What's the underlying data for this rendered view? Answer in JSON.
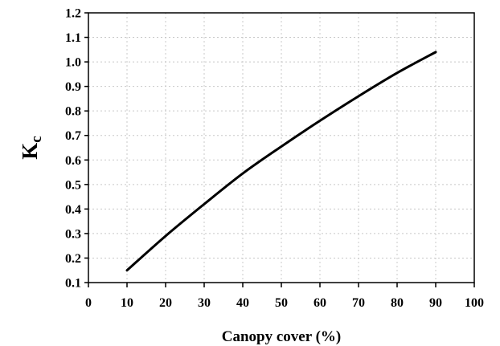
{
  "chart_data": {
    "type": "line",
    "xlabel": "Canopy cover (%)",
    "ylabel": {
      "main": "K",
      "subscript": "c"
    },
    "xlim": [
      0,
      100
    ],
    "ylim": [
      0.1,
      1.2
    ],
    "grid": true,
    "x_ticks": [
      "0",
      "10",
      "20",
      "30",
      "40",
      "50",
      "60",
      "70",
      "80",
      "90",
      "100"
    ],
    "y_ticks": [
      "0.1",
      "0.2",
      "0.3",
      "0.4",
      "0.5",
      "0.6",
      "0.7",
      "0.8",
      "0.9",
      "1.0",
      "1.1",
      "1.2"
    ],
    "series": [
      {
        "x": [
          10,
          20,
          30,
          40,
          50,
          60,
          70,
          80,
          90
        ],
        "y": [
          0.15,
          0.29,
          0.42,
          0.545,
          0.655,
          0.76,
          0.86,
          0.955,
          1.04
        ]
      }
    ],
    "colors": {
      "line": "#000000",
      "grid": "#c8c8c8",
      "frame": "#000000"
    }
  }
}
